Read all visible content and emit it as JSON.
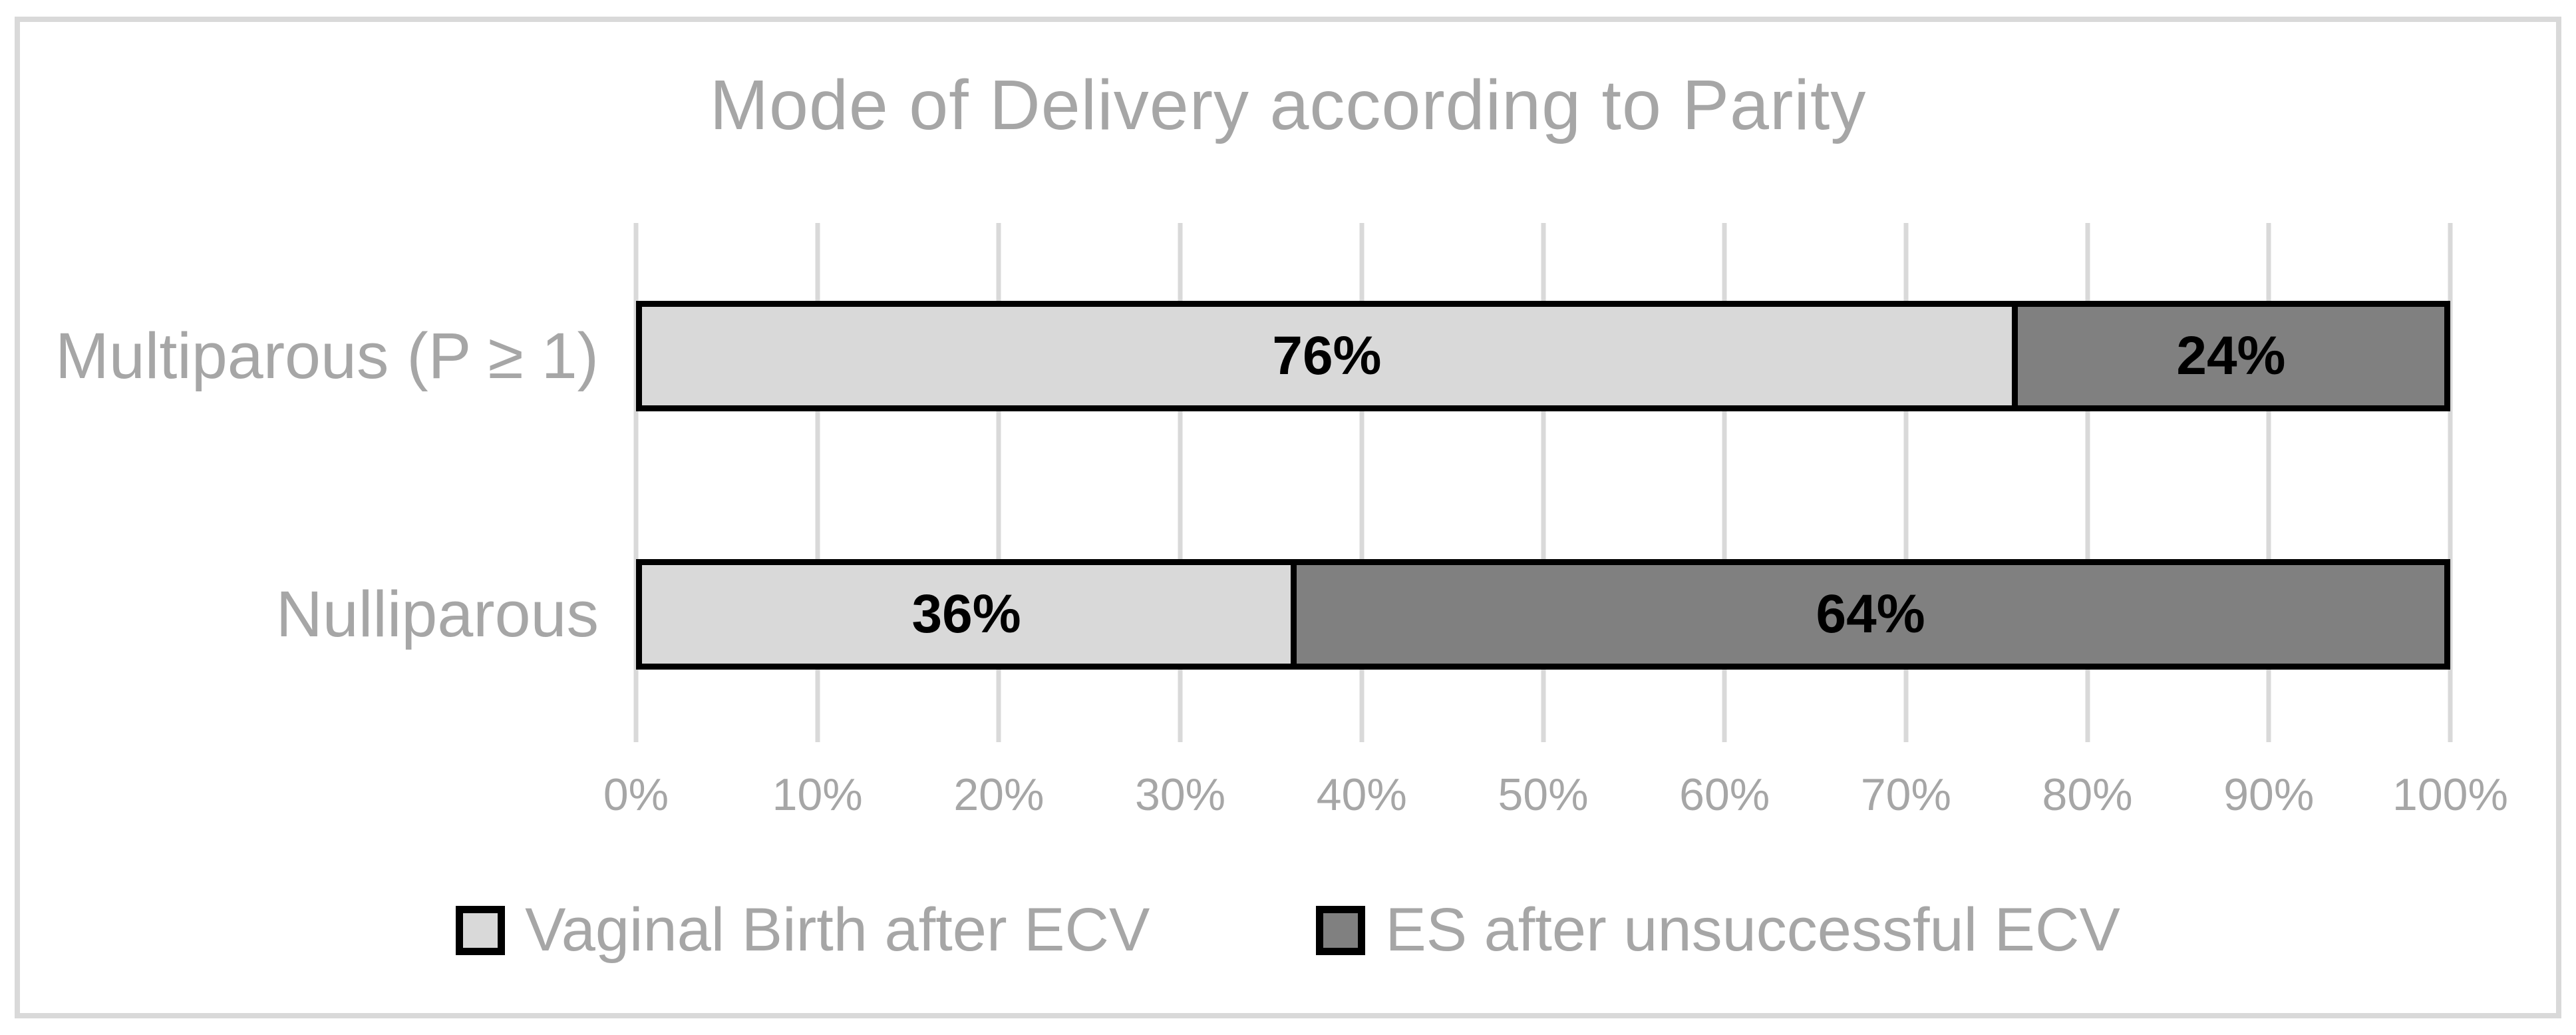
{
  "figure": {
    "title": "Mode of Delivery according to Parity"
  },
  "chart_data": {
    "type": "bar",
    "orientation": "horizontal",
    "stacked": true,
    "title": "Mode of Delivery according to Parity",
    "categories": [
      "Multiparous (P ≥ 1)",
      "Nulliparous"
    ],
    "series": [
      {
        "name": "Vaginal Birth after ECV",
        "values": [
          76,
          36
        ],
        "color": "#d9d9d9"
      },
      {
        "name": "ES after unsuccessful ECV",
        "values": [
          24,
          64
        ],
        "color": "#808080"
      }
    ],
    "data_labels": [
      [
        "76%",
        "24%"
      ],
      [
        "36%",
        "64%"
      ]
    ],
    "x_axis": {
      "min": 0,
      "max": 100,
      "tick_step": 10,
      "tick_labels": [
        "0%",
        "10%",
        "20%",
        "30%",
        "40%",
        "50%",
        "60%",
        "70%",
        "80%",
        "90%",
        "100%"
      ]
    },
    "grid": true,
    "legend_position": "bottom"
  },
  "colors": {
    "background": "#ffffff",
    "frame_border": "#d9d9d9",
    "gridline": "#d9d9d9",
    "bar_border": "#000000",
    "series_vaginal_birth": "#d9d9d9",
    "series_es": "#808080",
    "gray_text": "#a6a6a6",
    "data_label_text": "#000000"
  }
}
